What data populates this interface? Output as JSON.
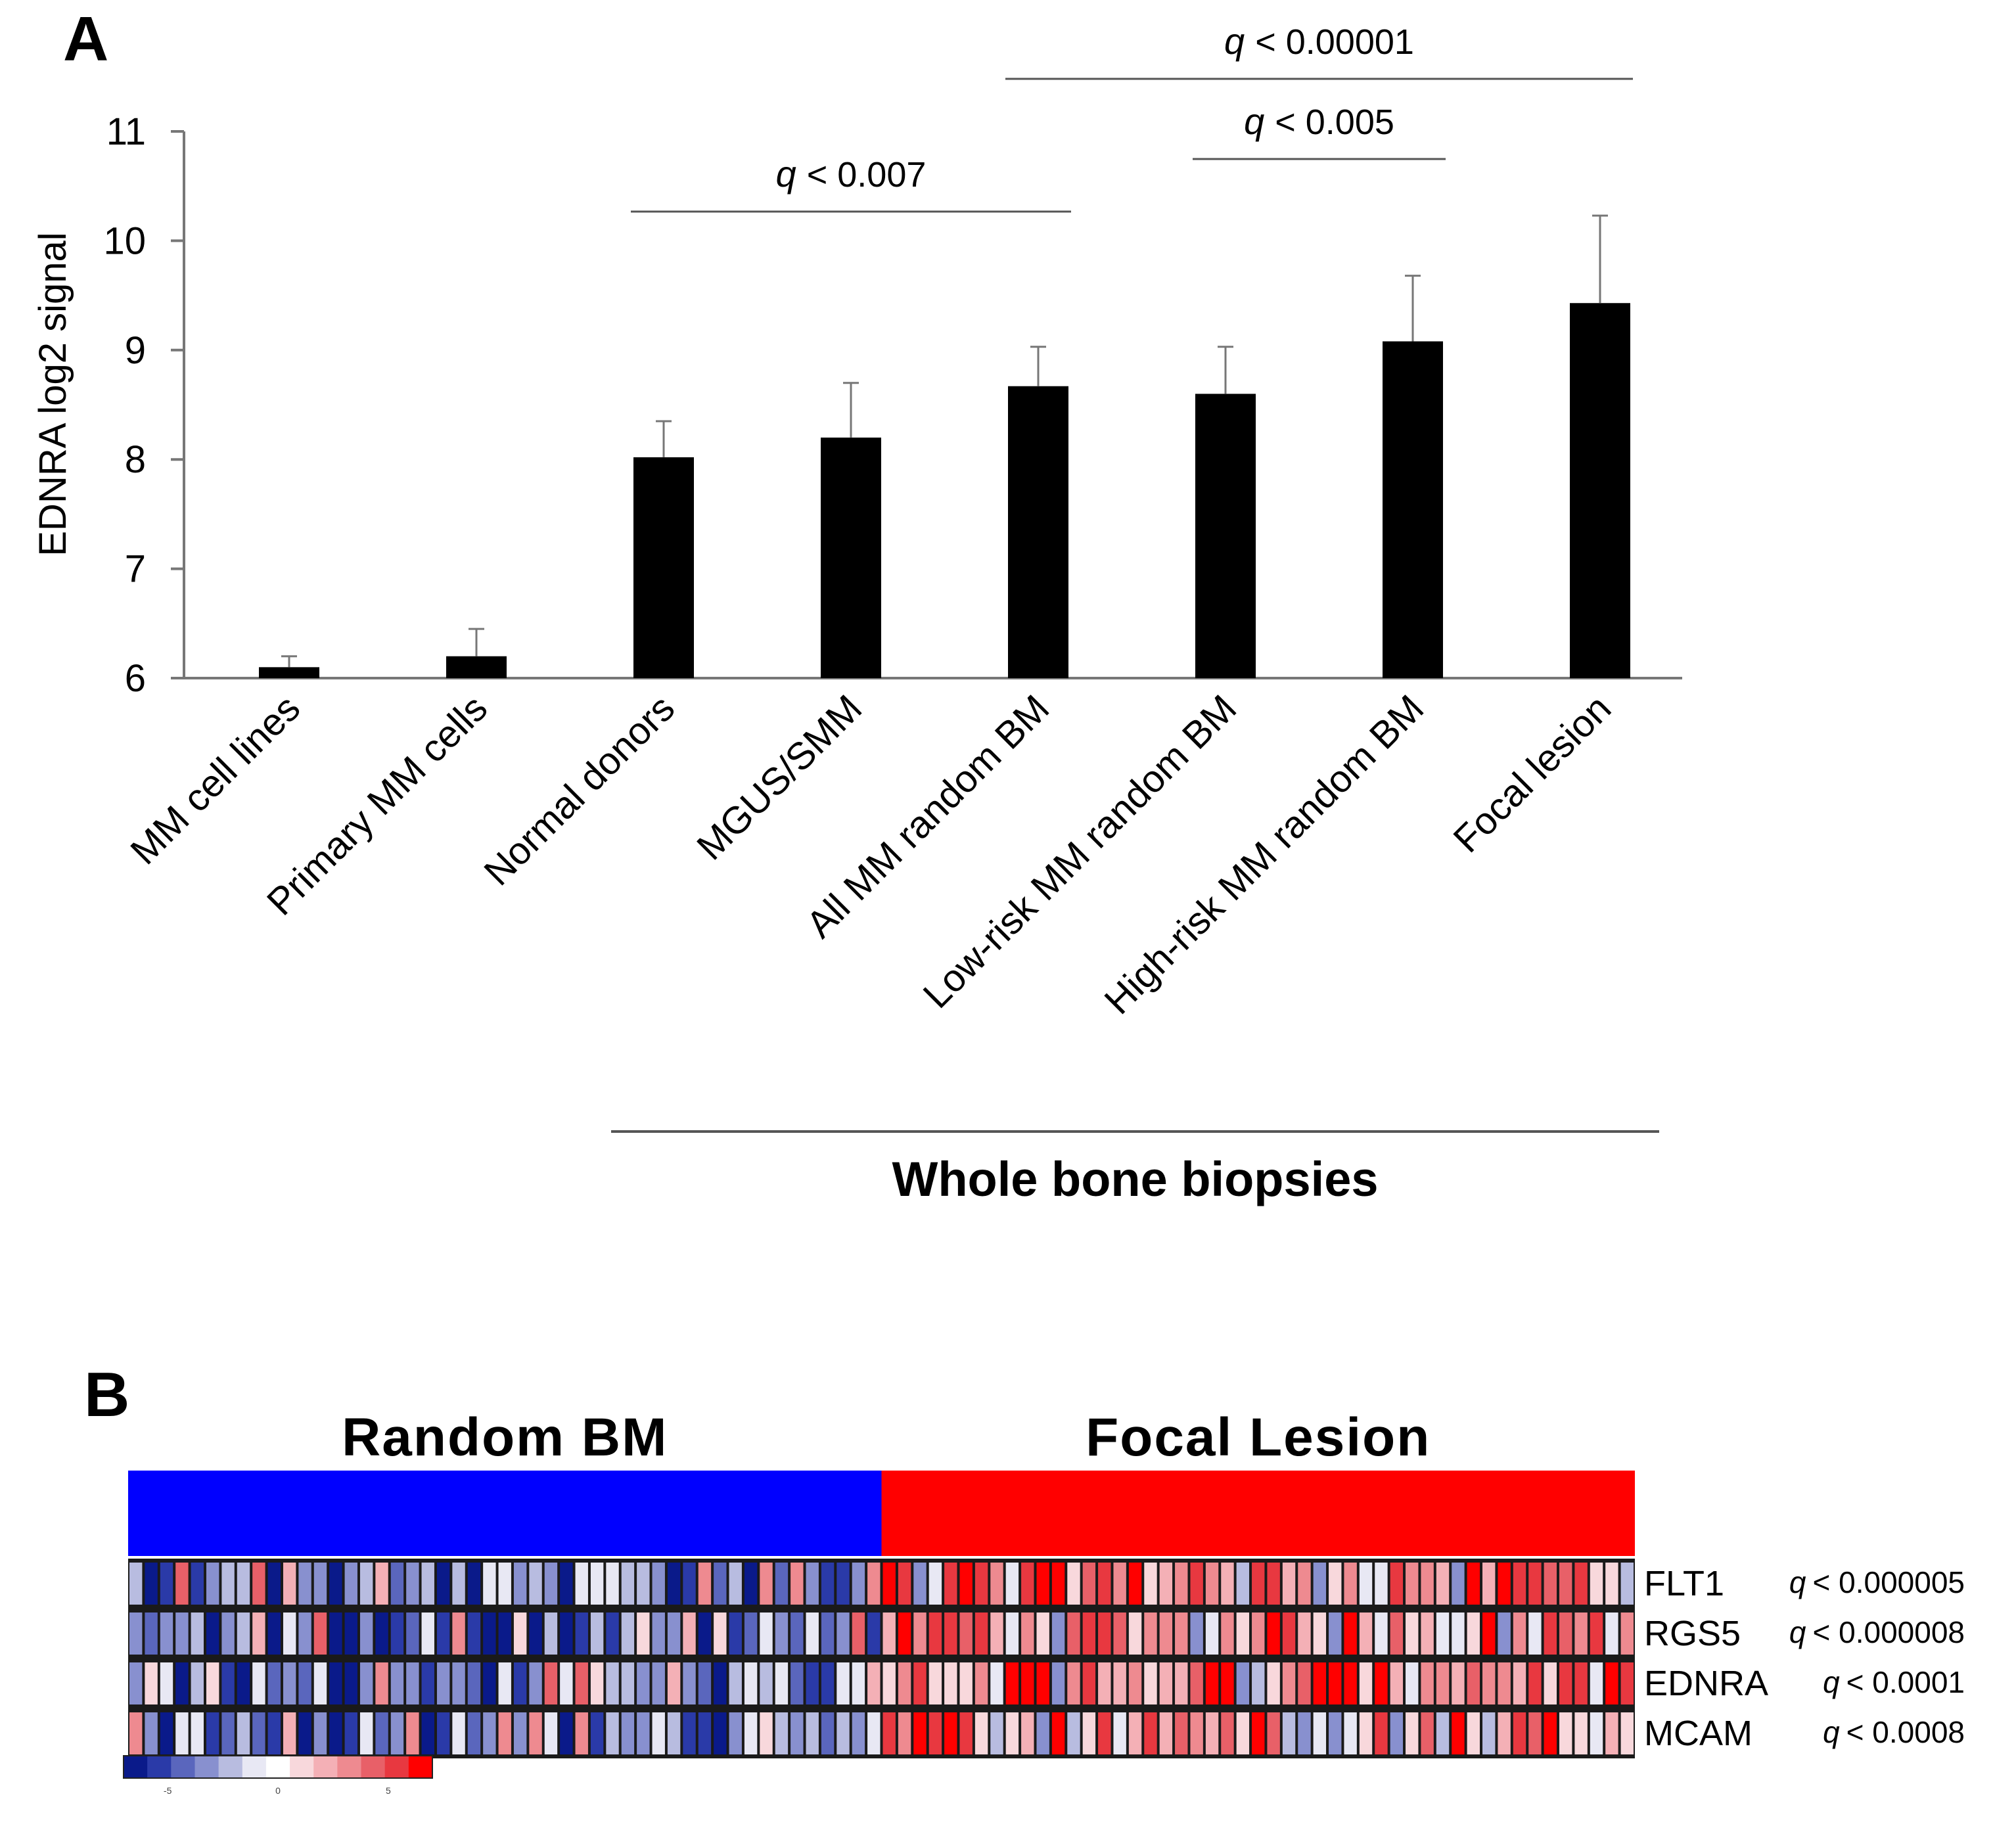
{
  "panel_a_letter": "A",
  "panel_b_letter": "B",
  "chart_data": [
    {
      "type": "bar",
      "ylabel": "EDNRA log2 signal",
      "xlabel": "",
      "ylim": [
        6,
        11
      ],
      "yticks": [
        "6",
        "7",
        "8",
        "9",
        "10",
        "11"
      ],
      "categories": [
        "MM cell lines",
        "Primary MM cells",
        "Normal donors",
        "MGUS/SMM",
        "All MM random BM",
        "Low-risk MM random BM",
        "High-risk MM random BM",
        "Focal lesion"
      ],
      "values": [
        6.1,
        6.2,
        8.02,
        8.2,
        8.67,
        8.6,
        9.08,
        9.43
      ],
      "errors": [
        0.1,
        0.25,
        0.33,
        0.5,
        0.36,
        0.43,
        0.6,
        0.8
      ],
      "bar_color": "#000000",
      "group_bracket": {
        "label": "Whole bone biopsies",
        "from": "Normal donors",
        "to": "Focal lesion"
      },
      "significance": [
        {
          "q": "q",
          "text": "< 0.007",
          "from": "Normal donors",
          "to": "All MM random BM"
        },
        {
          "q": "q",
          "text": "< 0.005",
          "from": "Low-risk MM random BM",
          "to": "High-risk MM random BM"
        },
        {
          "q": "q",
          "text": "< 0.00001",
          "from": "All MM random BM",
          "to": "Focal lesion"
        }
      ]
    },
    {
      "type": "heatmap",
      "column_groups": [
        {
          "name": "Random BM",
          "color": "#0000ff",
          "n": 49
        },
        {
          "name": "Focal Lesion",
          "color": "#ff0000",
          "n": 49
        }
      ],
      "rows": [
        {
          "gene": "FLT1",
          "q": "q",
          "text": "< 0.000005"
        },
        {
          "gene": "RGS5",
          "q": "q",
          "text": "< 0.000008"
        },
        {
          "gene": "EDNRA",
          "q": "q",
          "text": "< 0.0001"
        },
        {
          "gene": "MCAM",
          "q": "q",
          "text": "< 0.0008"
        }
      ],
      "color_scale": {
        "min": -7,
        "max": 7,
        "ticks": [
          "-5",
          "0",
          "5"
        ],
        "colors": [
          "#0a1a8a",
          "#2a3aa8",
          "#5a66bd",
          "#8890cf",
          "#b8bce0",
          "#e8e8f4",
          "#ffffff",
          "#f8d8dc",
          "#f4b0b6",
          "#ee8a90",
          "#e86068",
          "#e83840",
          "#ff0000"
        ]
      }
    }
  ]
}
